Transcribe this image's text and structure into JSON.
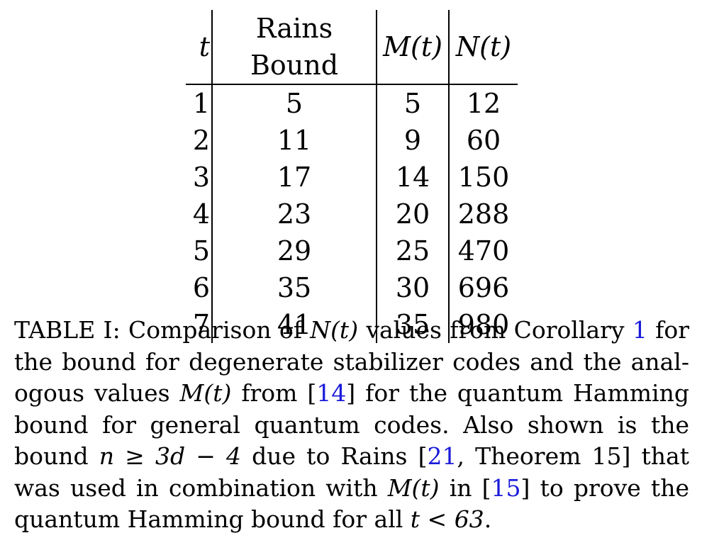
{
  "table": {
    "headers": [
      "t",
      "Rains Bound",
      "M(t)",
      "N(t)"
    ],
    "rows": [
      [
        "1",
        "5",
        "5",
        "12"
      ],
      [
        "2",
        "11",
        "9",
        "60"
      ],
      [
        "3",
        "17",
        "14",
        "150"
      ],
      [
        "4",
        "23",
        "20",
        "288"
      ],
      [
        "5",
        "29",
        "25",
        "470"
      ],
      [
        "6",
        "35",
        "30",
        "696"
      ],
      [
        "7",
        "41",
        "35",
        "980"
      ]
    ]
  },
  "caption": {
    "l1a": "TABLE I: Comparison of ",
    "l1b": "N(t)",
    "l1c": " values from Corollary ",
    "l1ref": "1",
    "l1d": " for",
    "l2": "the bound for degenerate stabilizer codes and the anal-",
    "l3a": "ogous values ",
    "l3b": "M(t)",
    "l3c": " from [",
    "l3ref": "14",
    "l3d": "] for the quantum Hamming",
    "l4": "bound for general quantum codes.  Also shown is the",
    "l5a": "bound ",
    "l5b": "n ≥ 3d − 4",
    "l5c": " due to Rains [",
    "l5ref": "21",
    "l5d": ", Theorem 15] that",
    "l6a": "was used in combination with ",
    "l6b": "M(t)",
    "l6c": " in [",
    "l6ref": "15",
    "l6d": "] to prove the",
    "l7a": "quantum Hamming bound for all ",
    "l7b": "t < 63",
    "l7c": "."
  },
  "colors": {
    "link": "#1a1adb",
    "text": "#000000"
  }
}
